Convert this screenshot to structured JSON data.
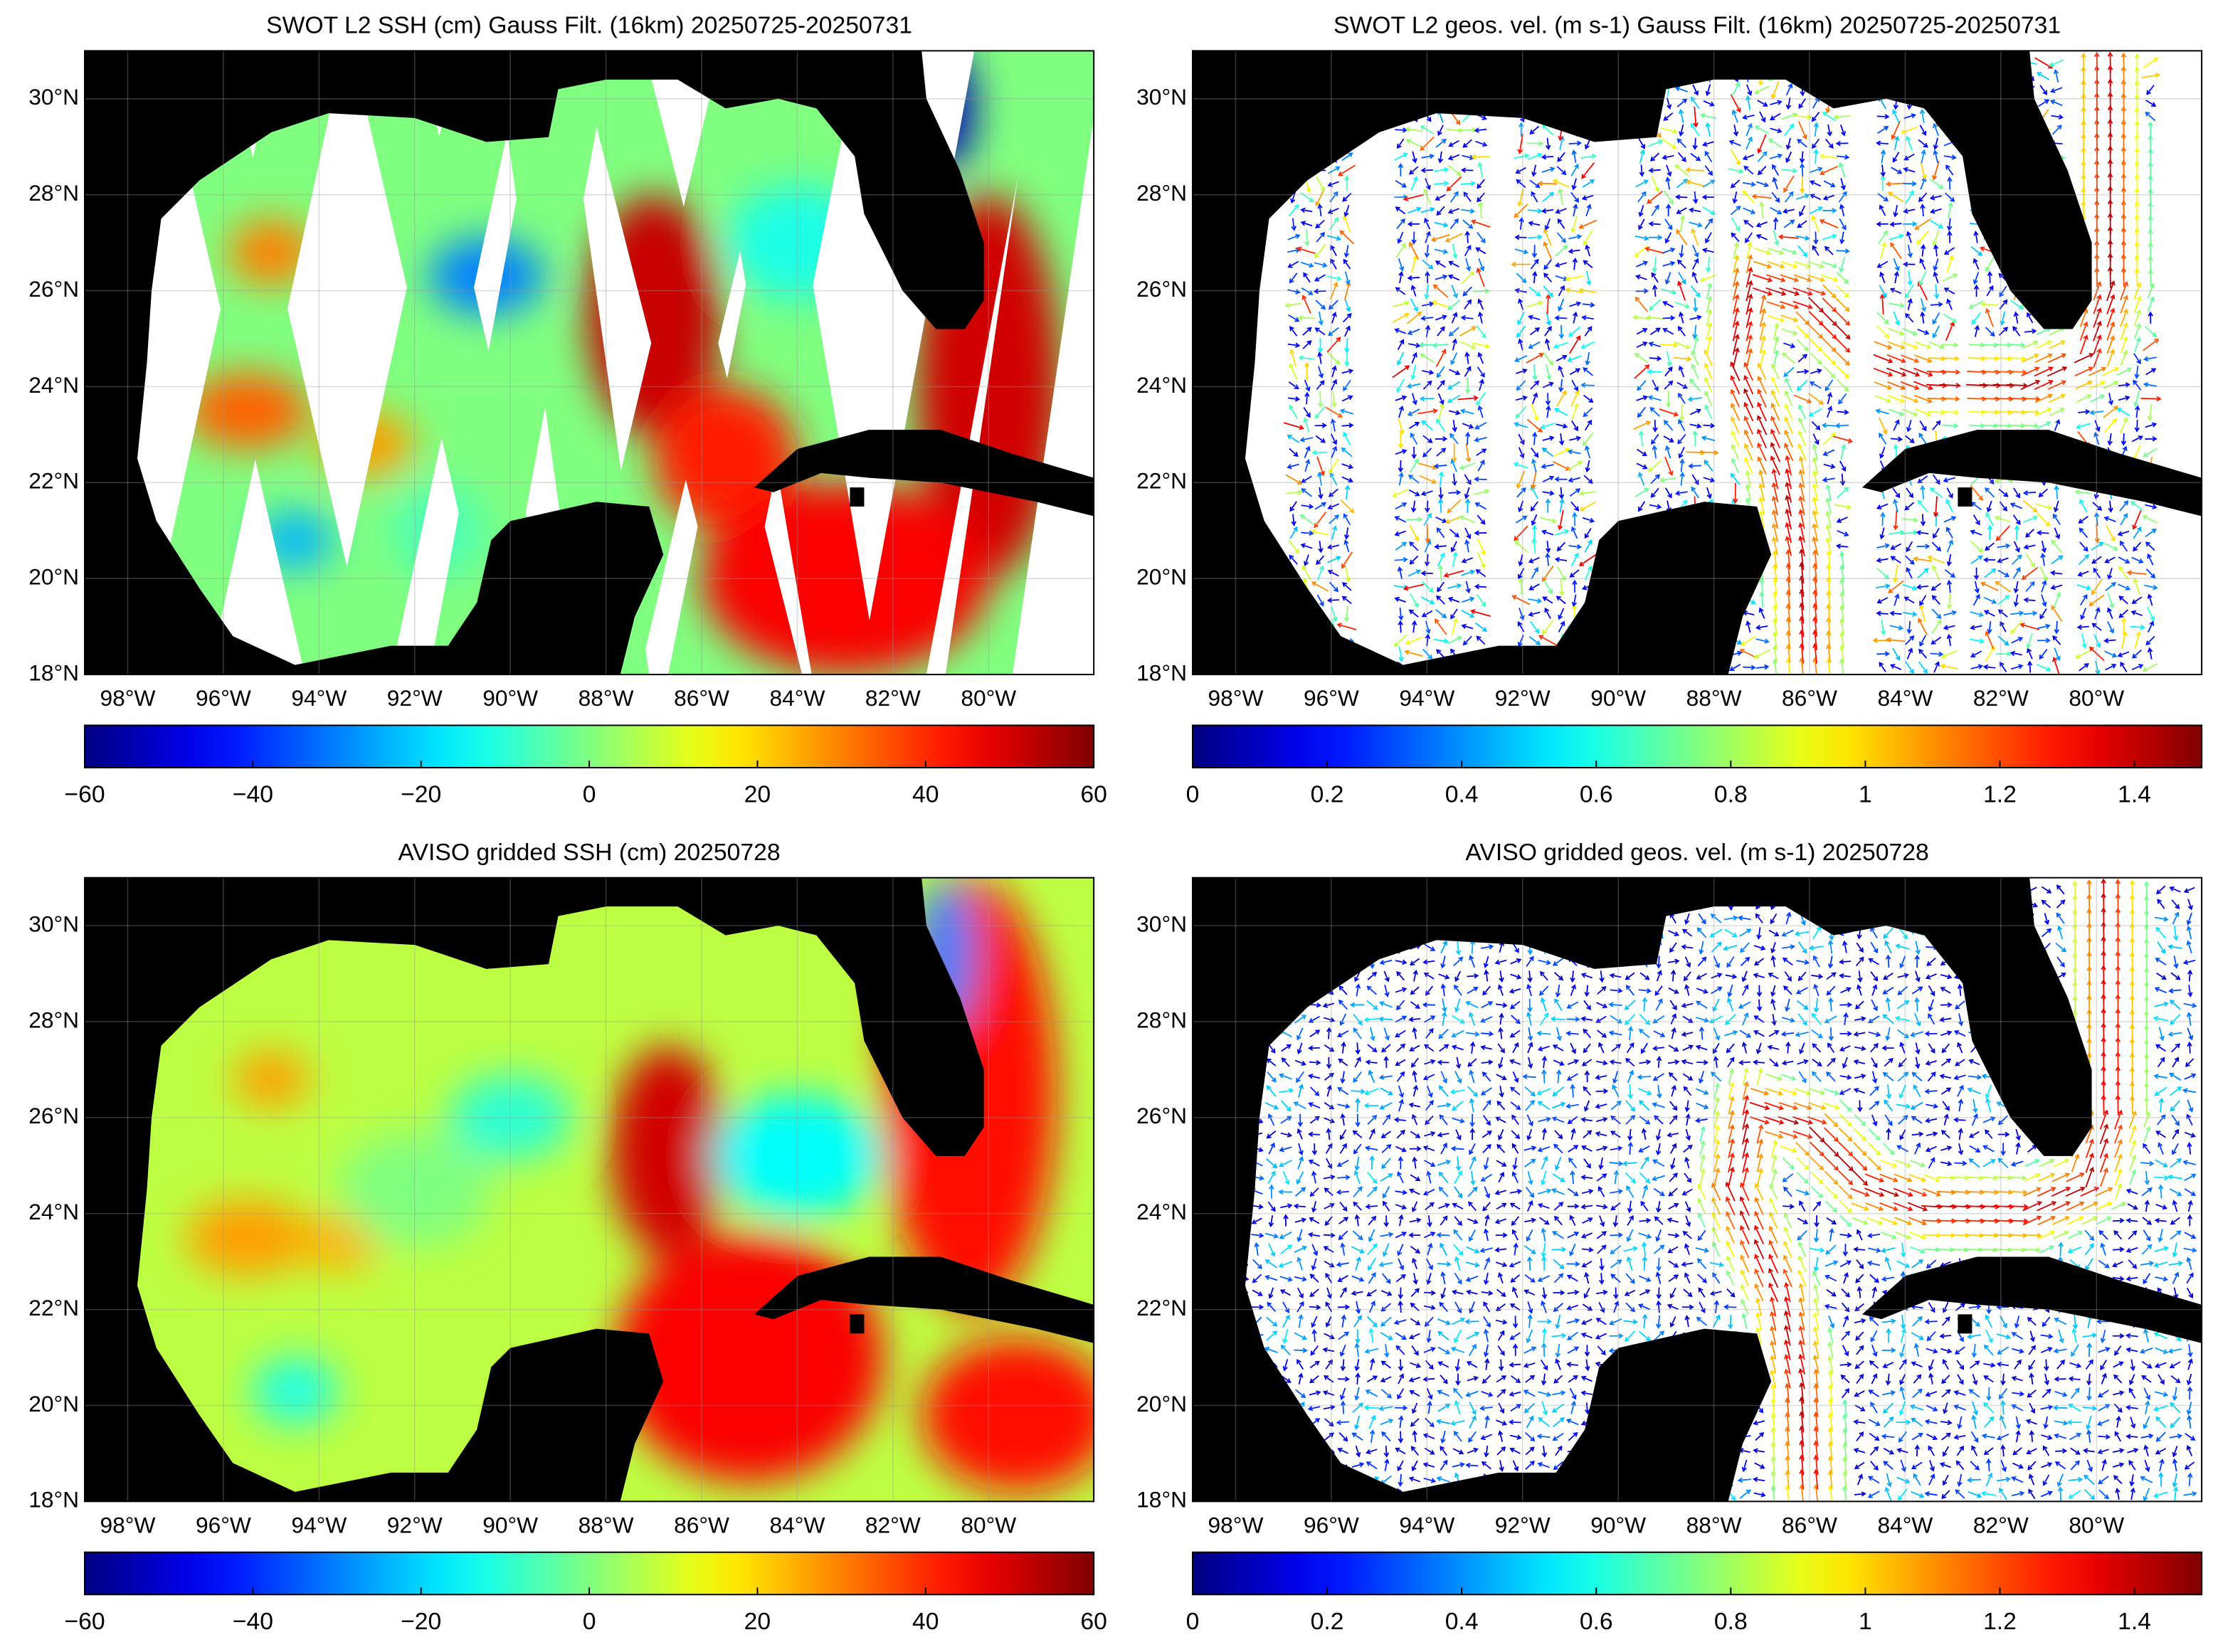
{
  "panels": [
    {
      "title": "SWOT L2 SSH (cm) Gauss Filt. (16km) 20250725-20250731",
      "type": "heatmap",
      "swath": true,
      "xlim": [
        -98.9,
        -77.8
      ],
      "ylim": [
        18,
        31
      ],
      "xticks": [
        {
          "value": -98,
          "label": "98°W"
        },
        {
          "value": -96,
          "label": "96°W"
        },
        {
          "value": -94,
          "label": "94°W"
        },
        {
          "value": -92,
          "label": "92°W"
        },
        {
          "value": -90,
          "label": "90°W"
        },
        {
          "value": -88,
          "label": "88°W"
        },
        {
          "value": -86,
          "label": "86°W"
        },
        {
          "value": -84,
          "label": "84°W"
        },
        {
          "value": -82,
          "label": "82°W"
        },
        {
          "value": -80,
          "label": "80°W"
        }
      ],
      "yticks": [
        {
          "value": 18,
          "label": "18°N"
        },
        {
          "value": 20,
          "label": "20°N"
        },
        {
          "value": 22,
          "label": "22°N"
        },
        {
          "value": 24,
          "label": "24°N"
        },
        {
          "value": 26,
          "label": "26°N"
        },
        {
          "value": 28,
          "label": "28°N"
        },
        {
          "value": 30,
          "label": "30°N"
        }
      ],
      "colorbar": {
        "colormap": "jet",
        "lim": [
          -60,
          60
        ],
        "ticks": [
          {
            "value": -60,
            "label": "−60"
          },
          {
            "value": -40,
            "label": "−40"
          },
          {
            "value": -20,
            "label": "−20"
          },
          0,
          20,
          40,
          60
        ]
      }
    },
    {
      "title": "SWOT L2 geos. vel. (m s-1) Gauss Filt. (16km) 20250725-20250731",
      "type": "quiver",
      "swath": true,
      "xlim": [
        -98.9,
        -77.8
      ],
      "ylim": [
        18,
        31
      ],
      "xticks": [
        {
          "value": -98,
          "label": "98°W"
        },
        {
          "value": -96,
          "label": "96°W"
        },
        {
          "value": -94,
          "label": "94°W"
        },
        {
          "value": -92,
          "label": "92°W"
        },
        {
          "value": -90,
          "label": "90°W"
        },
        {
          "value": -88,
          "label": "88°W"
        },
        {
          "value": -86,
          "label": "86°W"
        },
        {
          "value": -84,
          "label": "84°W"
        },
        {
          "value": -82,
          "label": "82°W"
        },
        {
          "value": -80,
          "label": "80°W"
        }
      ],
      "yticks": [
        {
          "value": 18,
          "label": "18°N"
        },
        {
          "value": 20,
          "label": "20°N"
        },
        {
          "value": 22,
          "label": "22°N"
        },
        {
          "value": 24,
          "label": "24°N"
        },
        {
          "value": 26,
          "label": "26°N"
        },
        {
          "value": 28,
          "label": "28°N"
        },
        {
          "value": 30,
          "label": "30°N"
        }
      ],
      "colorbar": {
        "colormap": "jet",
        "lim": [
          0,
          1.5
        ],
        "ticks": [
          0,
          0.2,
          0.4,
          0.6,
          0.8,
          1,
          1.2,
          1.4
        ]
      }
    },
    {
      "title": "AVISO gridded SSH (cm) 20250728",
      "type": "heatmap",
      "swath": false,
      "xlim": [
        -98.9,
        -77.8
      ],
      "ylim": [
        18,
        31
      ],
      "xticks": [
        {
          "value": -98,
          "label": "98°W"
        },
        {
          "value": -96,
          "label": "96°W"
        },
        {
          "value": -94,
          "label": "94°W"
        },
        {
          "value": -92,
          "label": "92°W"
        },
        {
          "value": -90,
          "label": "90°W"
        },
        {
          "value": -88,
          "label": "88°W"
        },
        {
          "value": -86,
          "label": "86°W"
        },
        {
          "value": -84,
          "label": "84°W"
        },
        {
          "value": -82,
          "label": "82°W"
        },
        {
          "value": -80,
          "label": "80°W"
        }
      ],
      "yticks": [
        {
          "value": 18,
          "label": "18°N"
        },
        {
          "value": 20,
          "label": "20°N"
        },
        {
          "value": 22,
          "label": "22°N"
        },
        {
          "value": 24,
          "label": "24°N"
        },
        {
          "value": 26,
          "label": "26°N"
        },
        {
          "value": 28,
          "label": "28°N"
        },
        {
          "value": 30,
          "label": "30°N"
        }
      ],
      "colorbar": {
        "colormap": "jet",
        "lim": [
          -60,
          60
        ],
        "ticks": [
          {
            "value": -60,
            "label": "−60"
          },
          {
            "value": -40,
            "label": "−40"
          },
          {
            "value": -20,
            "label": "−20"
          },
          0,
          20,
          40,
          60
        ]
      }
    },
    {
      "title": "AVISO gridded geos. vel. (m s-1)  20250728",
      "type": "quiver",
      "swath": false,
      "xlim": [
        -98.9,
        -77.8
      ],
      "ylim": [
        18,
        31
      ],
      "xticks": [
        {
          "value": -98,
          "label": "98°W"
        },
        {
          "value": -96,
          "label": "96°W"
        },
        {
          "value": -94,
          "label": "94°W"
        },
        {
          "value": -92,
          "label": "92°W"
        },
        {
          "value": -90,
          "label": "90°W"
        },
        {
          "value": -88,
          "label": "88°W"
        },
        {
          "value": -86,
          "label": "86°W"
        },
        {
          "value": -84,
          "label": "84°W"
        },
        {
          "value": -82,
          "label": "82°W"
        },
        {
          "value": -80,
          "label": "80°W"
        }
      ],
      "yticks": [
        {
          "value": 18,
          "label": "18°N"
        },
        {
          "value": 20,
          "label": "20°N"
        },
        {
          "value": 22,
          "label": "22°N"
        },
        {
          "value": 24,
          "label": "24°N"
        },
        {
          "value": 26,
          "label": "26°N"
        },
        {
          "value": 28,
          "label": "28°N"
        },
        {
          "value": 30,
          "label": "30°N"
        }
      ],
      "colorbar": {
        "colormap": "jet",
        "lim": [
          0,
          1.5
        ],
        "ticks": [
          0,
          0.2,
          0.4,
          0.6,
          0.8,
          1,
          1.2,
          1.4
        ]
      }
    }
  ]
}
